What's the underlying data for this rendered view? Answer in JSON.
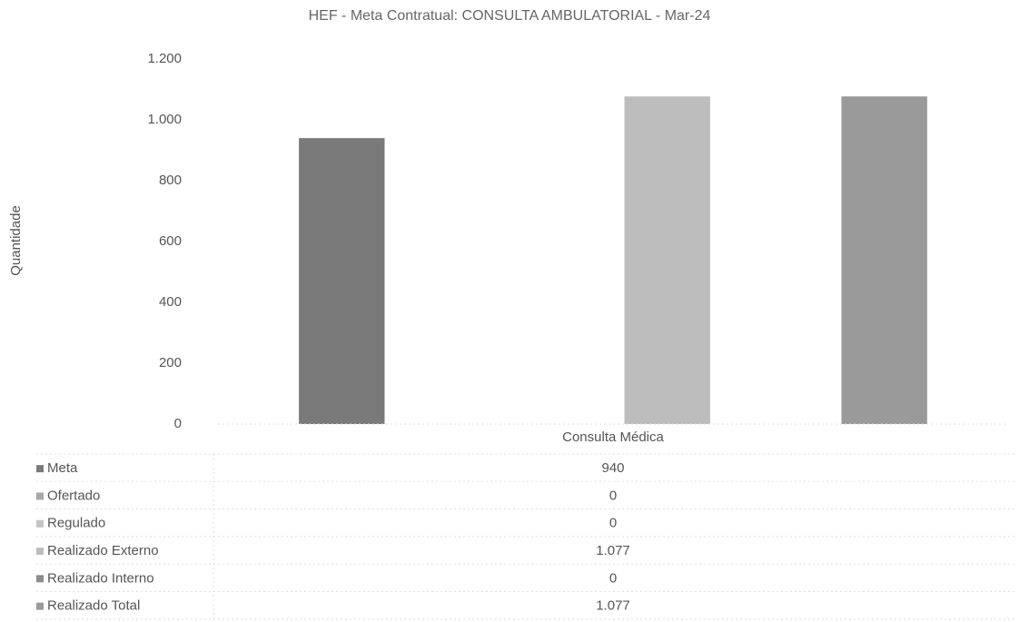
{
  "chart_data": {
    "type": "bar",
    "title": "HEF - Meta Contratual: CONSULTA AMBULATORIAL - Mar-24",
    "y_label": "Quantidade",
    "categories": [
      "Consulta Médica"
    ],
    "series": [
      {
        "name": "Meta",
        "color": "#7a7a7a",
        "values": [
          940
        ]
      },
      {
        "name": "Ofertado",
        "color": "#a8a8a8",
        "values": [
          0
        ]
      },
      {
        "name": "Regulado",
        "color": "#c4c4c4",
        "values": [
          0
        ]
      },
      {
        "name": "Realizado Externo",
        "color": "#bdbdbd",
        "values": [
          1077
        ],
        "value_labels": [
          "1.077"
        ]
      },
      {
        "name": "Realizado Interno",
        "color": "#8c8c8c",
        "values": [
          0
        ]
      },
      {
        "name": "Realizado Total",
        "color": "#9a9a9a",
        "values": [
          1077
        ],
        "value_labels": [
          "1.077"
        ]
      }
    ],
    "ylim": [
      0,
      1200
    ],
    "yticks": [
      0,
      200,
      400,
      600,
      800,
      {
        "value": 1000,
        "label": "1.000"
      },
      {
        "value": 1200,
        "label": "1.200"
      }
    ],
    "grid": false,
    "data_table": true
  }
}
